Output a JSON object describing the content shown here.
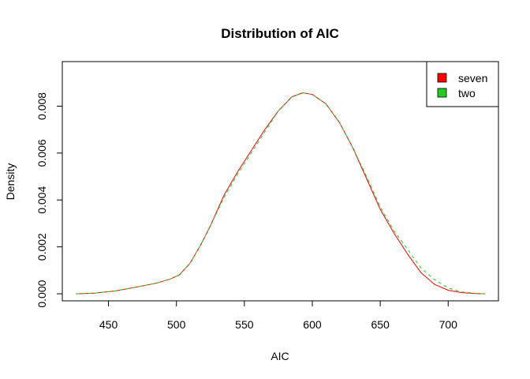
{
  "chart_data": {
    "type": "line",
    "title": "Distribution of AIC",
    "xlabel": "AIC",
    "ylabel": "Density",
    "xlim": [
      416,
      737
    ],
    "ylim": [
      -0.0003,
      0.0099
    ],
    "x_ticks": [
      450,
      500,
      550,
      600,
      650,
      700
    ],
    "x_tick_labels": [
      "450",
      "500",
      "550",
      "600",
      "650",
      "700"
    ],
    "y_ticks": [
      0.0,
      0.002,
      0.004,
      0.006,
      0.008
    ],
    "y_tick_labels": [
      "0.000",
      "0.002",
      "0.004",
      "0.006",
      "0.008"
    ],
    "grid": false,
    "legend": {
      "position": "top-right"
    },
    "series": [
      {
        "name": "seven",
        "color": "#ff0000",
        "line_style": "solid",
        "x": [
          426,
          440,
          455,
          470,
          485,
          495,
          502,
          510,
          518,
          525,
          535,
          545,
          555,
          565,
          575,
          585,
          593,
          600,
          610,
          620,
          630,
          640,
          650,
          660,
          670,
          680,
          690,
          700,
          710,
          720,
          727
        ],
        "y": [
          0.0,
          3e-05,
          0.00012,
          0.00028,
          0.00045,
          0.00062,
          0.0008,
          0.0013,
          0.0021,
          0.0029,
          0.0042,
          0.0052,
          0.0061,
          0.007,
          0.0078,
          0.0084,
          0.00857,
          0.0085,
          0.0081,
          0.0073,
          0.0062,
          0.0049,
          0.0036,
          0.0026,
          0.0017,
          0.0009,
          0.0004,
          0.00015,
          5e-05,
          1e-05,
          0.0
        ]
      },
      {
        "name": "two",
        "color": "#22cc22",
        "line_style": "dashed",
        "x": [
          426,
          440,
          455,
          470,
          485,
          495,
          502,
          510,
          518,
          525,
          535,
          545,
          555,
          565,
          575,
          585,
          593,
          600,
          610,
          620,
          630,
          640,
          650,
          660,
          670,
          680,
          690,
          700,
          710,
          720,
          727
        ],
        "y": [
          0.0,
          3e-05,
          0.00012,
          0.00028,
          0.00045,
          0.00062,
          0.0008,
          0.0013,
          0.0021,
          0.0029,
          0.0041,
          0.0051,
          0.006,
          0.0069,
          0.0078,
          0.0084,
          0.00857,
          0.0085,
          0.0081,
          0.0073,
          0.0062,
          0.005,
          0.0037,
          0.0027,
          0.0019,
          0.0011,
          0.0006,
          0.00025,
          8e-05,
          2e-05,
          0.0
        ]
      }
    ]
  }
}
